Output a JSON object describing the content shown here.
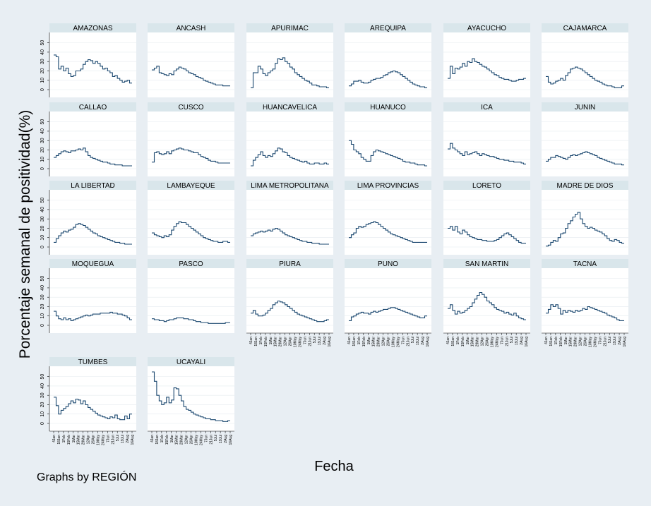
{
  "chart_data": {
    "type": "line",
    "ylabel": "Porcentaje semanal de positividad(%)",
    "xlabel": "Fecha",
    "note": "Graphs by REGIÓN",
    "ylim": [
      0,
      55
    ],
    "yticks": [
      0,
      10,
      20,
      30,
      40,
      50
    ],
    "x_tick_labels": [
      "4Jan",
      "18Jan",
      "1Feb",
      "15Feb",
      "1Mar",
      "15Mar",
      "29Mar",
      "12Apr",
      "26Apr",
      "10May",
      "24May",
      "7Jun",
      "21Jun",
      "5Jul",
      "19Jul",
      "2Aug",
      "16Aug"
    ],
    "line_color": "#1a476f",
    "panel_bg": "#ffffff",
    "header_bg": "#d9e6eb",
    "panels": [
      {
        "name": "AMAZONAS",
        "values": [
          37,
          35,
          22,
          25,
          20,
          23,
          17,
          14,
          15,
          20,
          20,
          22,
          27,
          30,
          32,
          31,
          28,
          30,
          28,
          25,
          22,
          23,
          20,
          18,
          14,
          15,
          12,
          10,
          8,
          9,
          10,
          7
        ]
      },
      {
        "name": "ANCASH",
        "values": [
          21,
          23,
          25,
          18,
          17,
          16,
          15,
          17,
          16,
          20,
          22,
          24,
          23,
          22,
          20,
          18,
          17,
          16,
          14,
          13,
          12,
          10,
          9,
          8,
          7,
          6,
          5,
          5,
          5,
          4,
          4,
          4
        ]
      },
      {
        "name": "APURIMAC",
        "values": [
          2,
          18,
          18,
          25,
          22,
          17,
          15,
          18,
          20,
          22,
          28,
          33,
          32,
          34,
          30,
          28,
          24,
          22,
          18,
          16,
          14,
          12,
          10,
          9,
          7,
          5,
          5,
          4,
          3,
          3,
          3,
          2
        ]
      },
      {
        "name": "AREQUIPA",
        "values": [
          4,
          6,
          9,
          9,
          10,
          8,
          7,
          7,
          8,
          10,
          11,
          12,
          12,
          13,
          15,
          16,
          18,
          19,
          20,
          19,
          18,
          16,
          14,
          12,
          10,
          8,
          6,
          5,
          4,
          3,
          3,
          2
        ]
      },
      {
        "name": "AYACUCHO",
        "values": [
          12,
          25,
          17,
          23,
          22,
          24,
          28,
          25,
          30,
          29,
          33,
          30,
          29,
          27,
          25,
          24,
          22,
          20,
          18,
          16,
          15,
          13,
          12,
          11,
          11,
          10,
          9,
          9,
          10,
          11,
          11,
          12
        ]
      },
      {
        "name": "CAJAMARCA",
        "values": [
          14,
          8,
          6,
          7,
          9,
          10,
          12,
          10,
          15,
          18,
          22,
          23,
          24,
          23,
          22,
          20,
          18,
          16,
          14,
          12,
          10,
          9,
          8,
          6,
          5,
          4,
          4,
          3,
          2,
          2,
          2,
          4
        ]
      },
      {
        "name": "CALLAO",
        "values": [
          12,
          14,
          16,
          18,
          19,
          18,
          17,
          19,
          19,
          20,
          21,
          20,
          22,
          18,
          14,
          12,
          11,
          10,
          9,
          8,
          7,
          7,
          6,
          5,
          5,
          4,
          4,
          4,
          3,
          3,
          3,
          3
        ]
      },
      {
        "name": "CUSCO",
        "values": [
          7,
          17,
          18,
          16,
          15,
          16,
          18,
          16,
          19,
          20,
          21,
          22,
          21,
          20,
          20,
          19,
          18,
          17,
          17,
          15,
          13,
          12,
          11,
          9,
          8,
          8,
          7,
          6,
          6,
          6,
          6,
          6
        ]
      },
      {
        "name": "HUANCAVELICA",
        "values": [
          3,
          9,
          12,
          15,
          18,
          14,
          12,
          14,
          13,
          16,
          19,
          22,
          21,
          18,
          17,
          14,
          12,
          11,
          10,
          9,
          8,
          7,
          8,
          6,
          5,
          5,
          6,
          6,
          5,
          5,
          6,
          5
        ]
      },
      {
        "name": "HUANUCO",
        "values": [
          30,
          26,
          20,
          18,
          16,
          12,
          10,
          8,
          8,
          14,
          18,
          20,
          19,
          18,
          17,
          16,
          15,
          14,
          13,
          12,
          11,
          10,
          8,
          7,
          7,
          6,
          6,
          5,
          4,
          4,
          4,
          3
        ]
      },
      {
        "name": "ICA",
        "values": [
          21,
          27,
          22,
          20,
          18,
          16,
          14,
          18,
          15,
          16,
          17,
          18,
          16,
          14,
          16,
          15,
          14,
          13,
          13,
          12,
          11,
          10,
          10,
          9,
          9,
          8,
          8,
          7,
          7,
          7,
          6,
          5
        ]
      },
      {
        "name": "JUNIN",
        "values": [
          8,
          10,
          12,
          12,
          14,
          13,
          12,
          11,
          10,
          12,
          14,
          15,
          14,
          15,
          16,
          17,
          18,
          17,
          16,
          15,
          14,
          12,
          11,
          10,
          9,
          8,
          7,
          6,
          5,
          5,
          5,
          4
        ]
      },
      {
        "name": "LA LIBERTAD",
        "values": [
          5,
          9,
          12,
          15,
          17,
          16,
          18,
          19,
          21,
          24,
          25,
          24,
          23,
          21,
          19,
          17,
          15,
          14,
          12,
          11,
          10,
          9,
          8,
          7,
          6,
          5,
          5,
          4,
          4,
          3,
          3,
          3
        ]
      },
      {
        "name": "LAMBAYEQUE",
        "values": [
          15,
          13,
          12,
          11,
          10,
          12,
          11,
          13,
          18,
          22,
          25,
          27,
          26,
          26,
          24,
          22,
          20,
          18,
          16,
          14,
          12,
          10,
          9,
          8,
          7,
          6,
          6,
          5,
          5,
          6,
          6,
          5
        ]
      },
      {
        "name": "LIMA METROPOLITANA",
        "values": [
          12,
          14,
          15,
          16,
          17,
          16,
          17,
          18,
          17,
          19,
          20,
          19,
          17,
          15,
          13,
          12,
          11,
          10,
          9,
          8,
          7,
          6,
          6,
          5,
          5,
          4,
          4,
          4,
          3,
          3,
          3,
          3
        ]
      },
      {
        "name": "LIMA PROVINCIAS",
        "values": [
          10,
          13,
          15,
          20,
          22,
          21,
          22,
          24,
          25,
          26,
          27,
          26,
          24,
          22,
          20,
          18,
          16,
          14,
          13,
          12,
          11,
          10,
          9,
          8,
          7,
          6,
          5,
          5,
          5,
          5,
          5,
          5
        ]
      },
      {
        "name": "LORETO",
        "values": [
          20,
          22,
          18,
          22,
          16,
          14,
          18,
          16,
          13,
          11,
          10,
          9,
          8,
          8,
          7,
          7,
          6,
          6,
          6,
          7,
          8,
          10,
          12,
          14,
          15,
          13,
          11,
          9,
          7,
          5,
          4,
          4
        ]
      },
      {
        "name": "MADRE DE DIOS",
        "values": [
          1,
          2,
          5,
          7,
          6,
          10,
          14,
          15,
          20,
          25,
          28,
          32,
          35,
          37,
          30,
          25,
          22,
          20,
          21,
          20,
          18,
          17,
          16,
          14,
          12,
          9,
          7,
          6,
          8,
          7,
          5,
          4
        ]
      },
      {
        "name": "MOQUEGUA",
        "values": [
          15,
          10,
          7,
          6,
          8,
          6,
          7,
          5,
          6,
          7,
          8,
          9,
          10,
          11,
          10,
          11,
          12,
          12,
          12,
          13,
          13,
          13,
          13,
          14,
          13,
          13,
          12,
          12,
          11,
          10,
          8,
          6
        ]
      },
      {
        "name": "PASCO",
        "values": [
          7,
          6,
          6,
          5,
          5,
          4,
          5,
          6,
          6,
          7,
          8,
          8,
          8,
          7,
          7,
          6,
          6,
          5,
          4,
          4,
          3,
          3,
          3,
          2,
          2,
          2,
          2,
          2,
          2,
          2,
          3,
          3
        ]
      },
      {
        "name": "PIURA",
        "values": [
          13,
          16,
          12,
          10,
          10,
          11,
          13,
          16,
          18,
          22,
          24,
          26,
          25,
          24,
          22,
          20,
          18,
          16,
          14,
          12,
          11,
          10,
          9,
          8,
          7,
          6,
          5,
          4,
          4,
          4,
          5,
          6
        ]
      },
      {
        "name": "PUNO",
        "values": [
          5,
          9,
          10,
          12,
          13,
          14,
          13,
          13,
          12,
          14,
          15,
          14,
          15,
          16,
          17,
          17,
          18,
          19,
          19,
          18,
          17,
          16,
          15,
          14,
          13,
          12,
          11,
          10,
          9,
          8,
          8,
          10
        ]
      },
      {
        "name": "SAN MARTIN",
        "values": [
          18,
          22,
          16,
          12,
          15,
          13,
          14,
          16,
          18,
          20,
          24,
          28,
          32,
          35,
          33,
          30,
          26,
          24,
          22,
          19,
          17,
          16,
          15,
          13,
          14,
          12,
          11,
          13,
          10,
          8,
          7,
          6
        ]
      },
      {
        "name": "TACNA",
        "values": [
          13,
          17,
          22,
          20,
          22,
          18,
          12,
          16,
          14,
          16,
          15,
          14,
          16,
          15,
          16,
          18,
          17,
          20,
          19,
          18,
          17,
          16,
          15,
          14,
          13,
          11,
          10,
          9,
          8,
          6,
          5,
          5
        ]
      },
      {
        "name": "TUMBES",
        "values": [
          28,
          19,
          10,
          14,
          16,
          18,
          21,
          24,
          22,
          26,
          25,
          21,
          24,
          20,
          17,
          15,
          13,
          11,
          9,
          8,
          7,
          6,
          5,
          7,
          6,
          9,
          5,
          4,
          4,
          8,
          5,
          10
        ]
      },
      {
        "name": "UCAYALI",
        "values": [
          55,
          45,
          30,
          24,
          20,
          22,
          28,
          22,
          25,
          38,
          37,
          30,
          24,
          18,
          15,
          14,
          12,
          10,
          9,
          8,
          7,
          6,
          5,
          5,
          4,
          4,
          3,
          3,
          3,
          2,
          2,
          3
        ]
      }
    ]
  }
}
